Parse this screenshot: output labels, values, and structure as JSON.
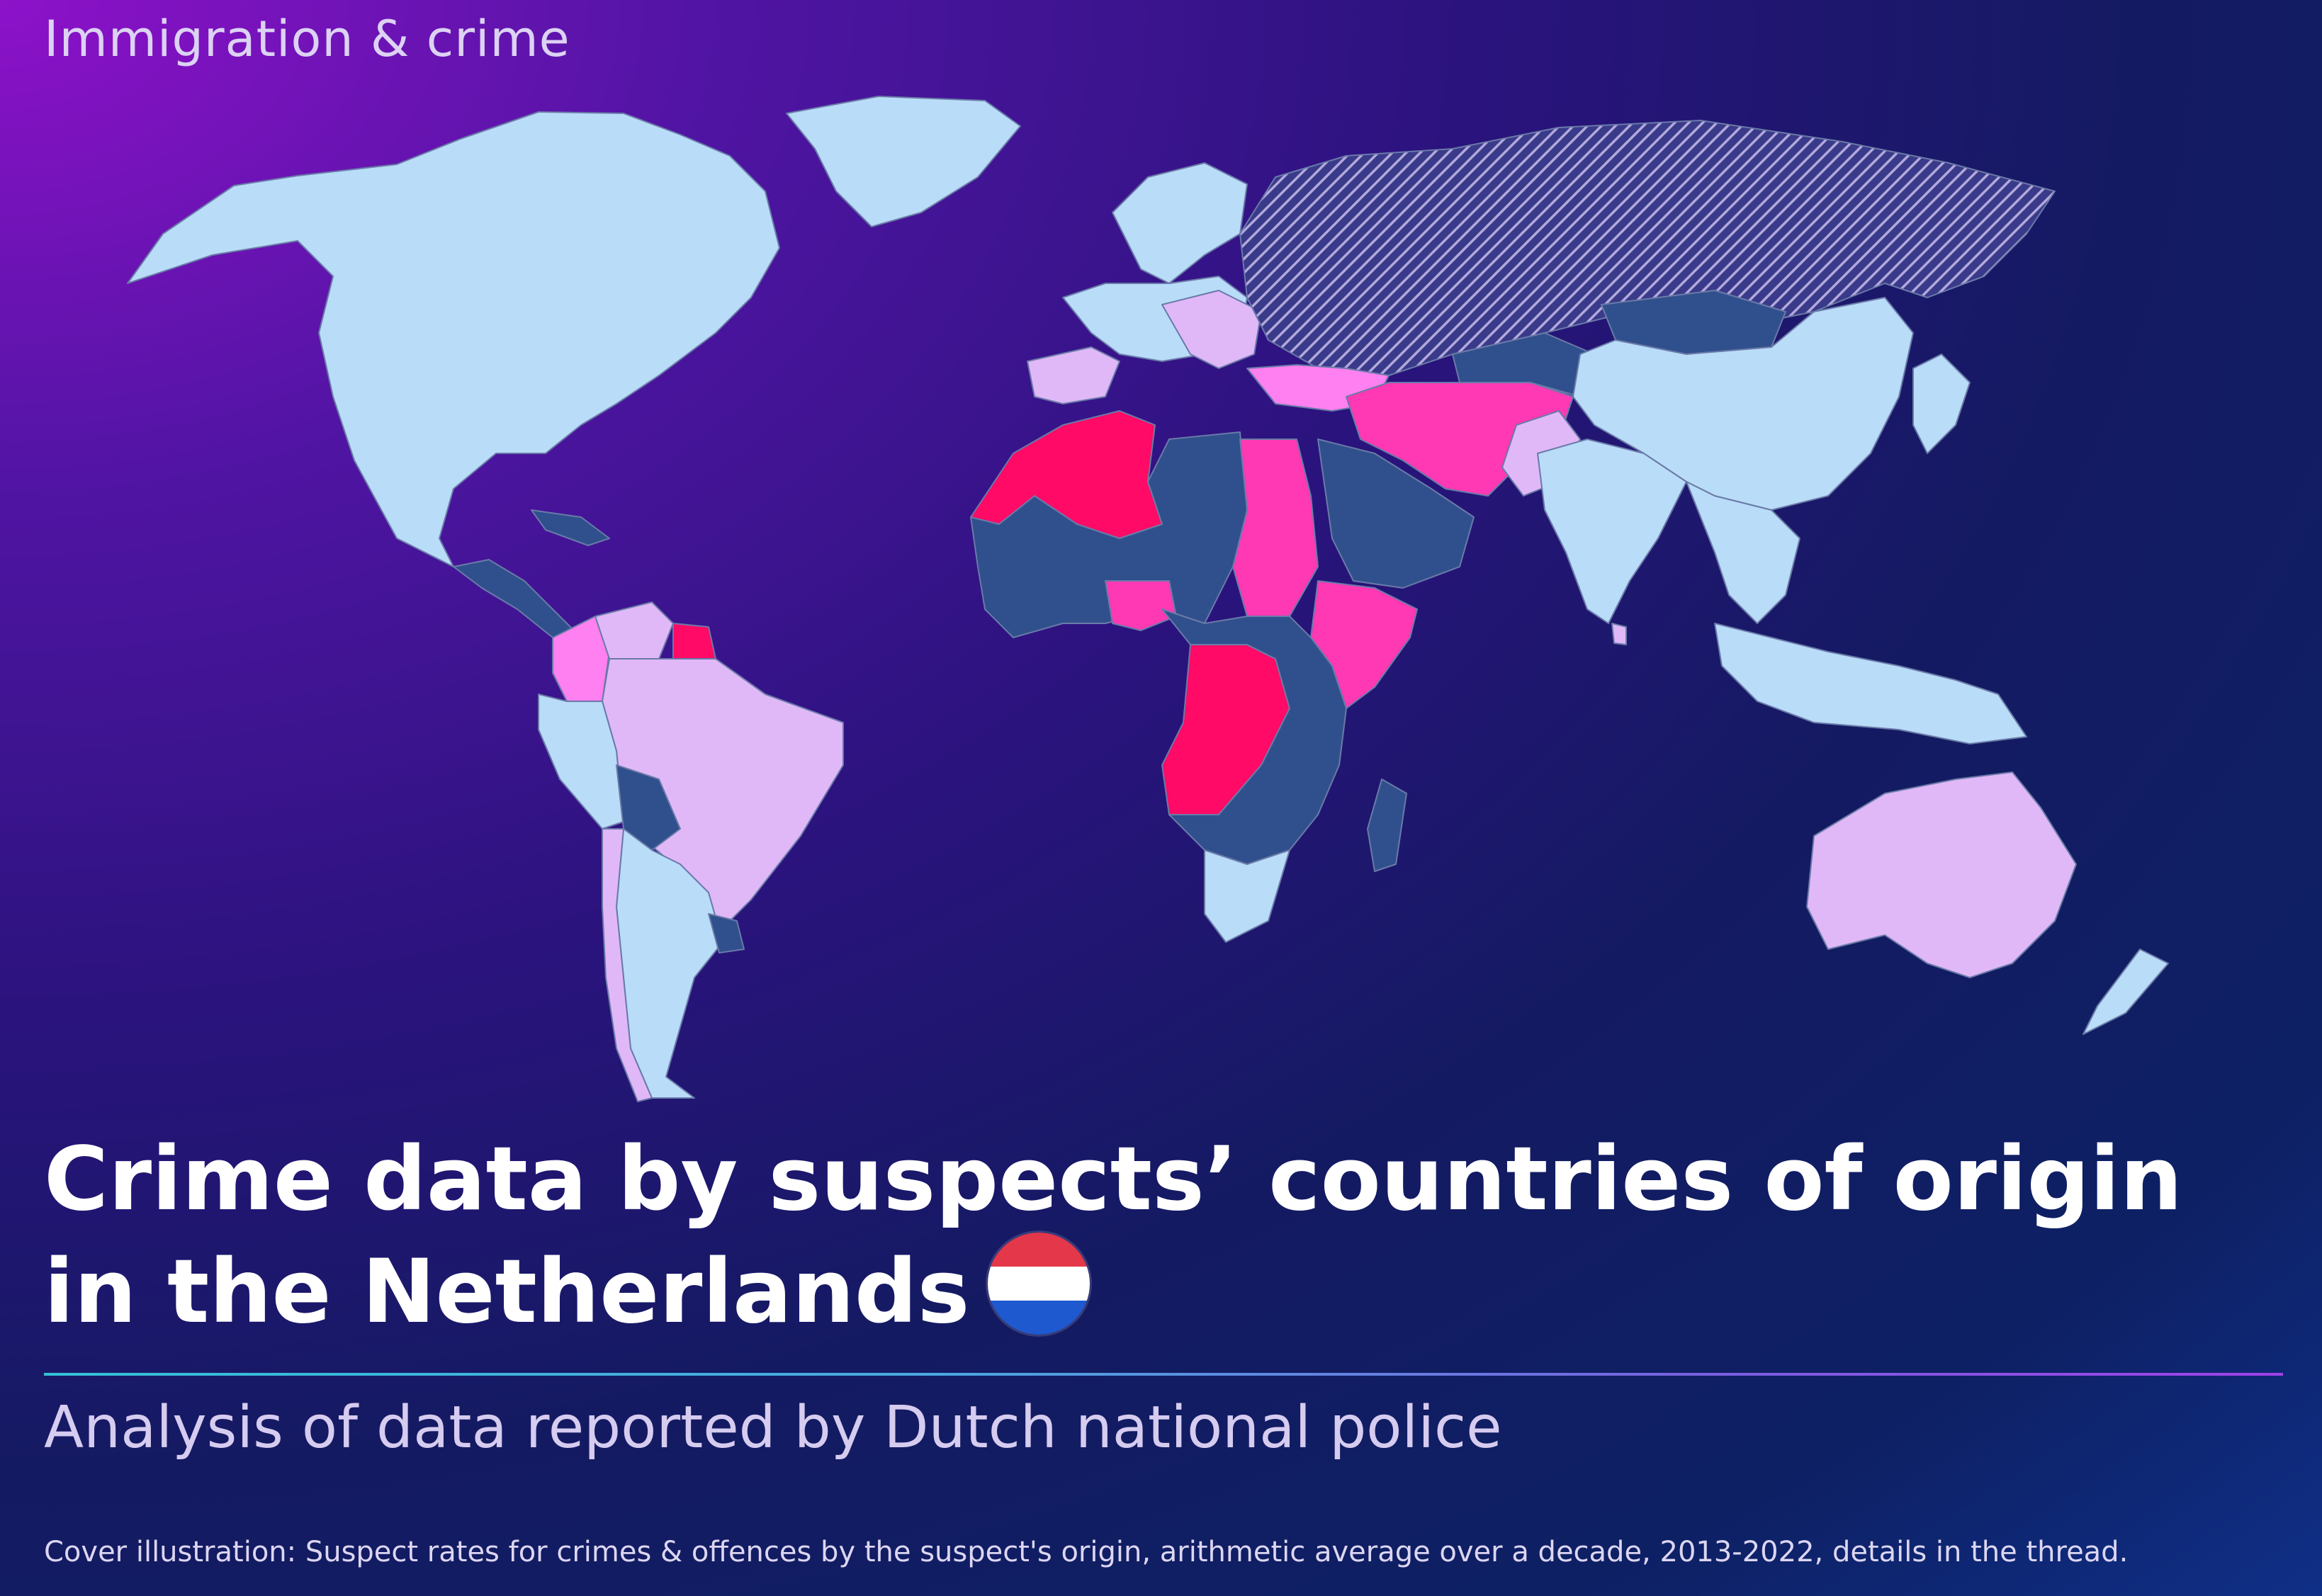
{
  "header": {
    "kicker": "Immigration & crime"
  },
  "title": {
    "line1": "Crime data by suspects’ countries of origin",
    "line2": "in the Netherlands"
  },
  "subtitle": "Analysis of data reported by Dutch national police",
  "caption": "Cover illustration: Suspect rates for crimes & offences by the suspect's origin, arithmetic average over a decade, 2013-2022, details in the thread.",
  "flag": {
    "icon": "netherlands-flag-icon",
    "colors": [
      "#e4374a",
      "#ffffff",
      "#1f59cf"
    ]
  },
  "map": {
    "type": "choropleth-world",
    "colors": {
      "ocean_dark": "#0b1a5c",
      "light_blue": "#b9dcf8",
      "mid_blue": "#30508d",
      "lavender": "#e0b8f8",
      "pink": "#ff80f0",
      "magenta": "#ff38b4",
      "red_pink": "#ff0a66",
      "hatched": "#9a90c8"
    },
    "regions": [
      {
        "name": "north-america",
        "category": "light_blue"
      },
      {
        "name": "greenland",
        "category": "light_blue"
      },
      {
        "name": "central-america",
        "category": "mid_blue"
      },
      {
        "name": "caribbean",
        "category": "mid_blue"
      },
      {
        "name": "colombia",
        "category": "pink"
      },
      {
        "name": "venezuela",
        "category": "lavender"
      },
      {
        "name": "suriname",
        "category": "red_pink"
      },
      {
        "name": "brazil",
        "category": "lavender"
      },
      {
        "name": "peru",
        "category": "light_blue"
      },
      {
        "name": "bolivia",
        "category": "mid_blue"
      },
      {
        "name": "argentina-chile",
        "category": "light_blue"
      },
      {
        "name": "chile-strip",
        "category": "lavender"
      },
      {
        "name": "uruguay",
        "category": "mid_blue"
      },
      {
        "name": "western-europe",
        "category": "light_blue"
      },
      {
        "name": "iberia",
        "category": "lavender"
      },
      {
        "name": "balkans",
        "category": "lavender"
      },
      {
        "name": "scandinavia",
        "category": "light_blue"
      },
      {
        "name": "russia",
        "category": "hatched"
      },
      {
        "name": "turkey",
        "category": "pink"
      },
      {
        "name": "morocco-algeria",
        "category": "red_pink"
      },
      {
        "name": "sahara-sahel",
        "category": "mid_blue"
      },
      {
        "name": "egypt-sudan",
        "category": "magenta"
      },
      {
        "name": "nigeria",
        "category": "magenta"
      },
      {
        "name": "ethiopia-somalia",
        "category": "magenta"
      },
      {
        "name": "congo-angola",
        "category": "red_pink"
      },
      {
        "name": "central-east-africa",
        "category": "mid_blue"
      },
      {
        "name": "south-africa",
        "category": "light_blue"
      },
      {
        "name": "madagascar",
        "category": "mid_blue"
      },
      {
        "name": "arabia",
        "category": "mid_blue"
      },
      {
        "name": "iraq-iran-afghanistan",
        "category": "magenta"
      },
      {
        "name": "pakistan",
        "category": "lavender"
      },
      {
        "name": "india",
        "category": "light_blue"
      },
      {
        "name": "sri-lanka",
        "category": "lavender"
      },
      {
        "name": "central-asia",
        "category": "mid_blue"
      },
      {
        "name": "mongolia",
        "category": "mid_blue"
      },
      {
        "name": "china",
        "category": "light_blue"
      },
      {
        "name": "southeast-asia",
        "category": "light_blue"
      },
      {
        "name": "japan-korea",
        "category": "light_blue"
      },
      {
        "name": "indonesia",
        "category": "light_blue"
      },
      {
        "name": "australia",
        "category": "lavender"
      },
      {
        "name": "new-zealand",
        "category": "light_blue"
      }
    ]
  }
}
